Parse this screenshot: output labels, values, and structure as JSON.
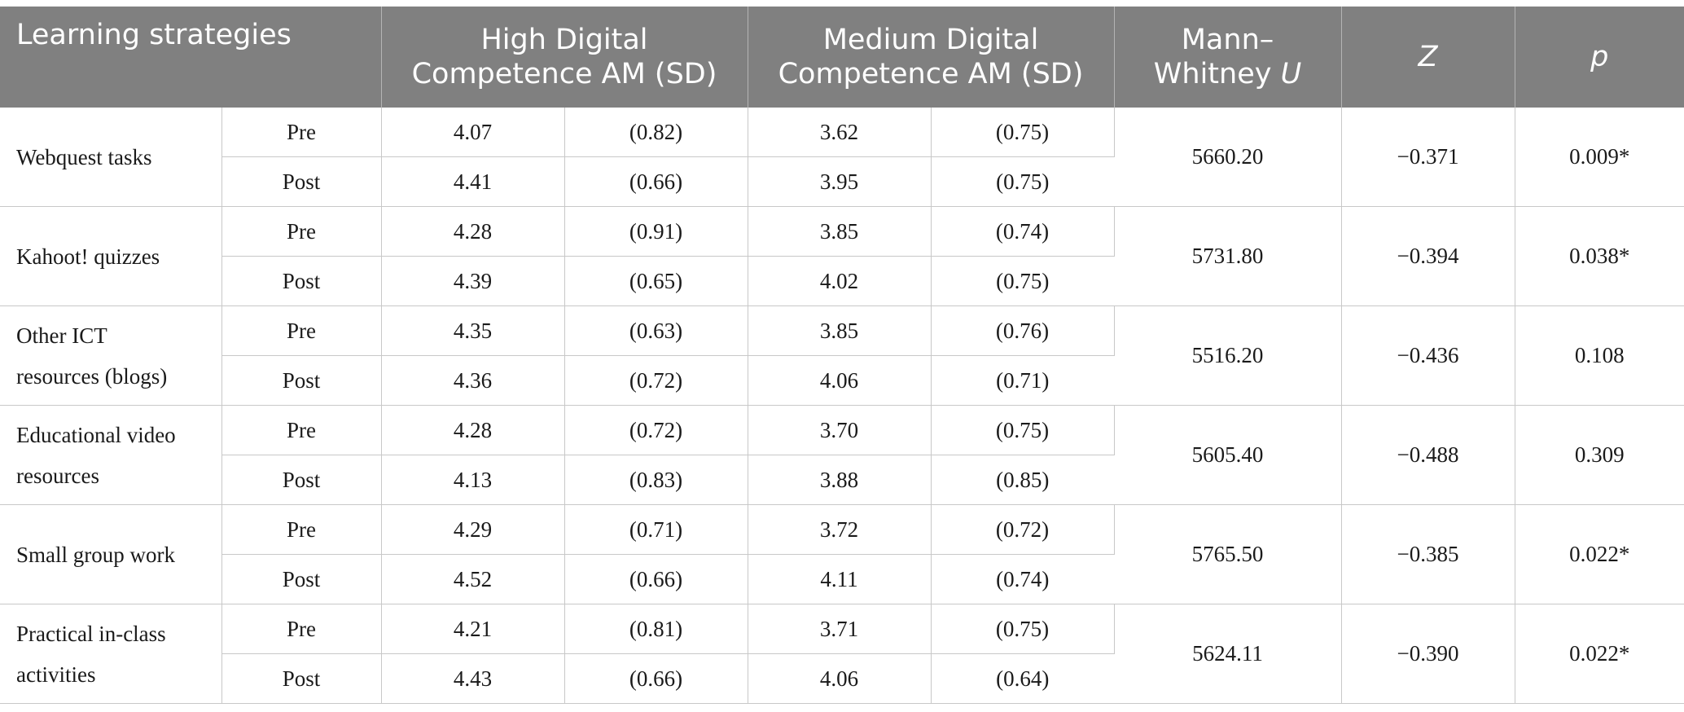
{
  "header": {
    "col_strategy": "Learning strategies",
    "col_high_line1": "High Digital",
    "col_high_line2": "Competence AM (SD)",
    "col_medium_line1": "Medium Digital",
    "col_medium_line2": "Competence AM (SD)",
    "col_mann_line1": "Mann–",
    "col_mann_line2": "Whitney ",
    "col_mann_u": "U",
    "col_z": "Z",
    "col_p": "p"
  },
  "rows": [
    {
      "label_line1": "Webquest tasks",
      "label_line2": "",
      "pre": {
        "phase": "Pre",
        "high_am": "4.07",
        "high_sd": "(0.82)",
        "med_am": "3.62",
        "med_sd": "(0.75)"
      },
      "post": {
        "phase": "Post",
        "high_am": "4.41",
        "high_sd": "(0.66)",
        "med_am": "3.95",
        "med_sd": "(0.75)"
      },
      "u": "5660.20",
      "z": "−0.371",
      "p": "0.009*"
    },
    {
      "label_line1": "Kahoot! quizzes",
      "label_line2": "",
      "pre": {
        "phase": "Pre",
        "high_am": "4.28",
        "high_sd": "(0.91)",
        "med_am": "3.85",
        "med_sd": "(0.74)"
      },
      "post": {
        "phase": "Post",
        "high_am": "4.39",
        "high_sd": "(0.65)",
        "med_am": "4.02",
        "med_sd": "(0.75)"
      },
      "u": "5731.80",
      "z": "−0.394",
      "p": "0.038*"
    },
    {
      "label_line1": "Other ICT",
      "label_line2": "resources (blogs)",
      "pre": {
        "phase": "Pre",
        "high_am": "4.35",
        "high_sd": "(0.63)",
        "med_am": "3.85",
        "med_sd": "(0.76)"
      },
      "post": {
        "phase": "Post",
        "high_am": "4.36",
        "high_sd": "(0.72)",
        "med_am": "4.06",
        "med_sd": "(0.71)"
      },
      "u": "5516.20",
      "z": "−0.436",
      "p": "0.108"
    },
    {
      "label_line1": "Educational video",
      "label_line2": "resources",
      "pre": {
        "phase": "Pre",
        "high_am": "4.28",
        "high_sd": "(0.72)",
        "med_am": "3.70",
        "med_sd": "(0.75)"
      },
      "post": {
        "phase": "Post",
        "high_am": "4.13",
        "high_sd": "(0.83)",
        "med_am": "3.88",
        "med_sd": "(0.85)"
      },
      "u": "5605.40",
      "z": "−0.488",
      "p": "0.309"
    },
    {
      "label_line1": "Small group work",
      "label_line2": "",
      "pre": {
        "phase": "Pre",
        "high_am": "4.29",
        "high_sd": "(0.71)",
        "med_am": "3.72",
        "med_sd": "(0.72)"
      },
      "post": {
        "phase": "Post",
        "high_am": "4.52",
        "high_sd": "(0.66)",
        "med_am": "4.11",
        "med_sd": "(0.74)"
      },
      "u": "5765.50",
      "z": "−0.385",
      "p": "0.022*"
    },
    {
      "label_line1": "Practical in-class",
      "label_line2": "activities",
      "pre": {
        "phase": "Pre",
        "high_am": "4.21",
        "high_sd": "(0.81)",
        "med_am": "3.71",
        "med_sd": "(0.75)"
      },
      "post": {
        "phase": "Post",
        "high_am": "4.43",
        "high_sd": "(0.66)",
        "med_am": "4.06",
        "med_sd": "(0.64)"
      },
      "u": "5624.11",
      "z": "−0.390",
      "p": "0.022*"
    }
  ]
}
